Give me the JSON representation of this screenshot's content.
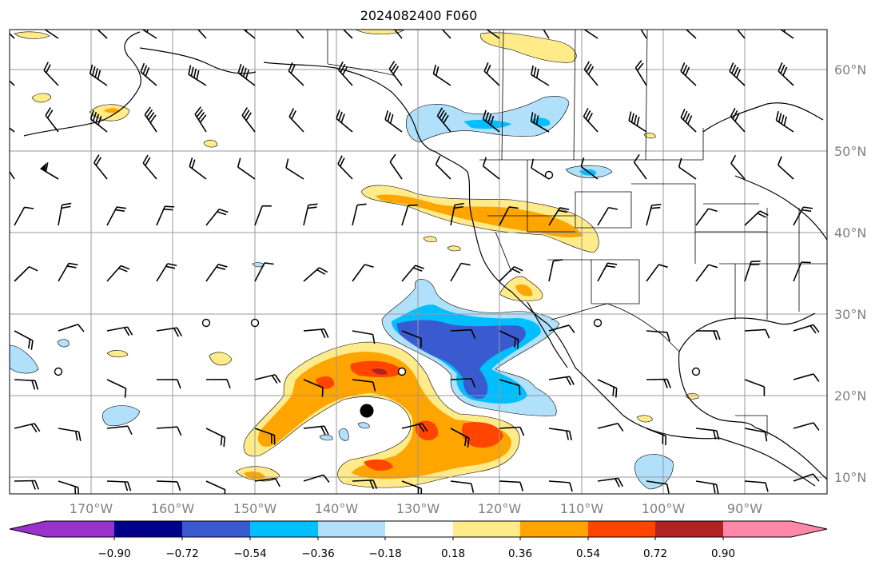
{
  "title": "2024082400 F060",
  "lat_labels": [
    "60°N",
    "50°N",
    "40°N",
    "30°N",
    "20°N",
    "10°N"
  ],
  "lon_labels": [
    "170°W",
    "160°W",
    "150°W",
    "140°W",
    "130°W",
    "120°W",
    "110°W",
    "100°W",
    "90°W"
  ],
  "colorbar": {
    "ticks": [
      "−0.90",
      "−0.72",
      "−0.54",
      "−0.36",
      "−0.18",
      "0.18",
      "0.36",
      "0.54",
      "0.72",
      "0.90"
    ],
    "colors": [
      "#9932cc",
      "#00008b",
      "#3a5bd0",
      "#00bfff",
      "#b0e0fa",
      "#ffffff",
      "#ffeb8a",
      "#ffa500",
      "#ff4500",
      "#b22222",
      "#ff88aa"
    ]
  },
  "map": {
    "extent_lon": [
      -180,
      -80
    ],
    "extent_lat": [
      8,
      65
    ],
    "grid": true,
    "features": [
      "coastlines",
      "country-borders",
      "state-borders",
      "wind-barbs",
      "shaded-anomaly-contours"
    ],
    "marker": "black-dot"
  }
}
